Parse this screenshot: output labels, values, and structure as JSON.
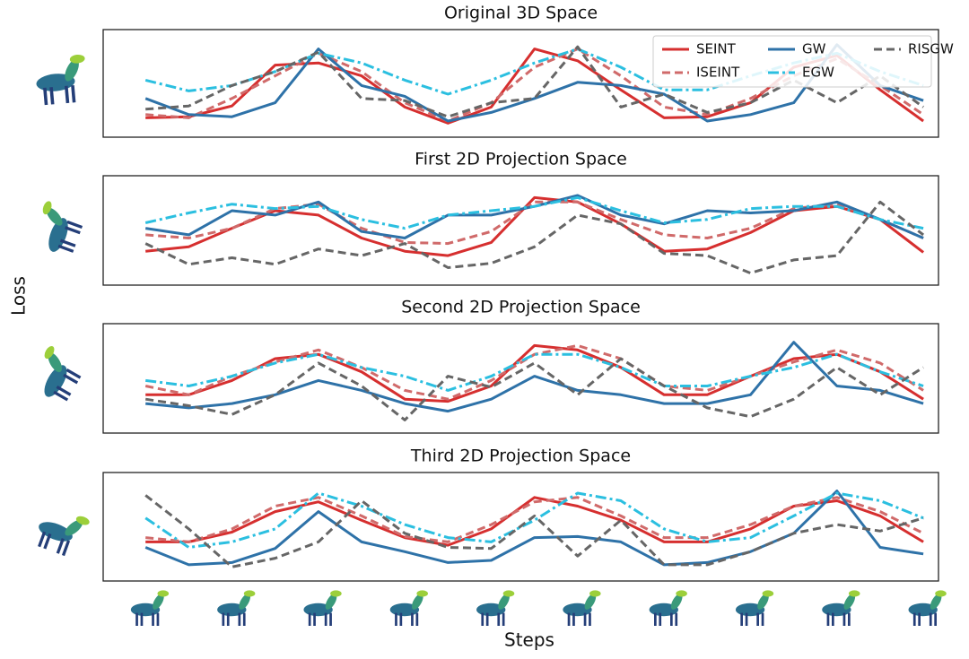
{
  "figure": {
    "ylabel": "Loss",
    "xlabel": "Steps"
  },
  "chart_data": [
    {
      "type": "line",
      "title": "Original 3D Space",
      "legend": "upper right",
      "xlim": [
        -0.98,
        18.35
      ],
      "ylim": [
        0,
        1
      ],
      "x": [
        0,
        1,
        2,
        3,
        4,
        5,
        6,
        7,
        8,
        9,
        10,
        11,
        12,
        13,
        14,
        15,
        16,
        17,
        18
      ],
      "series": [
        {
          "name": "SEINT",
          "color": "#d62f2f",
          "style": "solid",
          "values": [
            0.18,
            0.19,
            0.29,
            0.67,
            0.69,
            0.57,
            0.28,
            0.13,
            0.28,
            0.82,
            0.71,
            0.44,
            0.18,
            0.19,
            0.32,
            0.65,
            0.76,
            0.44,
            0.15
          ]
        },
        {
          "name": "ISEINT",
          "color": "#d06a6a",
          "style": "dashed",
          "values": [
            0.21,
            0.18,
            0.36,
            0.57,
            0.78,
            0.61,
            0.32,
            0.15,
            0.32,
            0.65,
            0.82,
            0.57,
            0.28,
            0.21,
            0.36,
            0.57,
            0.73,
            0.48,
            0.21
          ]
        },
        {
          "name": "GW",
          "color": "#2e72a8",
          "style": "solid",
          "values": [
            0.36,
            0.21,
            0.19,
            0.32,
            0.82,
            0.48,
            0.38,
            0.15,
            0.23,
            0.36,
            0.51,
            0.48,
            0.4,
            0.15,
            0.21,
            0.32,
            0.86,
            0.48,
            0.34
          ]
        },
        {
          "name": "EGW",
          "color": "#2bbfe0",
          "style": "dashdot",
          "values": [
            0.53,
            0.43,
            0.48,
            0.61,
            0.78,
            0.69,
            0.53,
            0.4,
            0.53,
            0.69,
            0.82,
            0.65,
            0.44,
            0.44,
            0.57,
            0.69,
            0.78,
            0.61,
            0.48
          ]
        },
        {
          "name": "RISGW",
          "color": "#666666",
          "style": "dashed",
          "values": [
            0.26,
            0.29,
            0.48,
            0.61,
            0.79,
            0.36,
            0.34,
            0.19,
            0.32,
            0.36,
            0.84,
            0.28,
            0.4,
            0.23,
            0.32,
            0.53,
            0.32,
            0.57,
            0.28
          ]
        }
      ]
    },
    {
      "type": "line",
      "title": "First 2D Projection Space",
      "xlim": [
        -0.98,
        18.35
      ],
      "ylim": [
        0,
        1
      ],
      "x": [
        0,
        1,
        2,
        3,
        4,
        5,
        6,
        7,
        8,
        9,
        10,
        11,
        12,
        13,
        14,
        15,
        16,
        17,
        18
      ],
      "series": [
        {
          "name": "SEINT",
          "color": "#d62f2f",
          "style": "solid",
          "values": [
            0.31,
            0.35,
            0.52,
            0.68,
            0.64,
            0.43,
            0.31,
            0.27,
            0.39,
            0.8,
            0.76,
            0.56,
            0.31,
            0.33,
            0.48,
            0.68,
            0.72,
            0.6,
            0.3
          ]
        },
        {
          "name": "ISEINT",
          "color": "#d06a6a",
          "style": "dashed",
          "values": [
            0.46,
            0.43,
            0.52,
            0.7,
            0.74,
            0.52,
            0.39,
            0.38,
            0.49,
            0.76,
            0.76,
            0.6,
            0.46,
            0.43,
            0.52,
            0.7,
            0.74,
            0.6,
            0.43
          ]
        },
        {
          "name": "GW",
          "color": "#2e72a8",
          "style": "solid",
          "values": [
            0.52,
            0.46,
            0.68,
            0.64,
            0.76,
            0.49,
            0.43,
            0.64,
            0.64,
            0.72,
            0.82,
            0.64,
            0.56,
            0.68,
            0.66,
            0.68,
            0.76,
            0.6,
            0.43
          ]
        },
        {
          "name": "EGW",
          "color": "#2bbfe0",
          "style": "dashdot",
          "values": [
            0.57,
            0.66,
            0.74,
            0.7,
            0.72,
            0.6,
            0.52,
            0.64,
            0.68,
            0.72,
            0.8,
            0.68,
            0.57,
            0.6,
            0.7,
            0.72,
            0.72,
            0.6,
            0.52
          ]
        },
        {
          "name": "RISGW",
          "color": "#666666",
          "style": "dashed",
          "values": [
            0.38,
            0.19,
            0.25,
            0.19,
            0.33,
            0.27,
            0.38,
            0.16,
            0.2,
            0.35,
            0.64,
            0.56,
            0.29,
            0.27,
            0.11,
            0.23,
            0.27,
            0.76,
            0.46
          ]
        }
      ]
    },
    {
      "type": "line",
      "title": "Second 2D Projection Space",
      "xlim": [
        -0.98,
        18.35
      ],
      "ylim": [
        0,
        1
      ],
      "x": [
        0,
        1,
        2,
        3,
        4,
        5,
        6,
        7,
        8,
        9,
        10,
        11,
        12,
        13,
        14,
        15,
        16,
        17,
        18
      ],
      "series": [
        {
          "name": "SEINT",
          "color": "#d62f2f",
          "style": "solid",
          "values": [
            0.35,
            0.35,
            0.48,
            0.68,
            0.72,
            0.56,
            0.31,
            0.29,
            0.43,
            0.8,
            0.76,
            0.6,
            0.35,
            0.35,
            0.52,
            0.68,
            0.72,
            0.56,
            0.31
          ]
        },
        {
          "name": "ISEINT",
          "color": "#d06a6a",
          "style": "dashed",
          "values": [
            0.43,
            0.35,
            0.52,
            0.65,
            0.76,
            0.6,
            0.39,
            0.31,
            0.48,
            0.72,
            0.8,
            0.68,
            0.43,
            0.39,
            0.52,
            0.65,
            0.76,
            0.64,
            0.39
          ]
        },
        {
          "name": "GW",
          "color": "#2e72a8",
          "style": "solid",
          "values": [
            0.27,
            0.23,
            0.27,
            0.35,
            0.48,
            0.39,
            0.27,
            0.2,
            0.31,
            0.52,
            0.39,
            0.35,
            0.27,
            0.27,
            0.35,
            0.83,
            0.43,
            0.39,
            0.27
          ]
        },
        {
          "name": "EGW",
          "color": "#2bbfe0",
          "style": "dashdot",
          "values": [
            0.48,
            0.43,
            0.52,
            0.64,
            0.72,
            0.6,
            0.52,
            0.39,
            0.52,
            0.72,
            0.72,
            0.6,
            0.43,
            0.43,
            0.52,
            0.6,
            0.72,
            0.56,
            0.43
          ]
        },
        {
          "name": "RISGW",
          "color": "#666666",
          "style": "dashed",
          "values": [
            0.31,
            0.25,
            0.17,
            0.35,
            0.64,
            0.43,
            0.12,
            0.52,
            0.42,
            0.64,
            0.35,
            0.68,
            0.43,
            0.23,
            0.15,
            0.31,
            0.6,
            0.35,
            0.6
          ]
        }
      ]
    },
    {
      "type": "line",
      "title": "Third 2D Projection Space",
      "xlim": [
        -0.98,
        18.35
      ],
      "ylim": [
        0,
        1
      ],
      "x": [
        0,
        1,
        2,
        3,
        4,
        5,
        6,
        7,
        8,
        9,
        10,
        11,
        12,
        13,
        14,
        15,
        16,
        17,
        18
      ],
      "series": [
        {
          "name": "SEINT",
          "color": "#d62f2f",
          "style": "solid",
          "values": [
            0.36,
            0.36,
            0.45,
            0.64,
            0.73,
            0.56,
            0.4,
            0.33,
            0.48,
            0.77,
            0.69,
            0.56,
            0.36,
            0.36,
            0.48,
            0.69,
            0.74,
            0.6,
            0.36
          ]
        },
        {
          "name": "ISEINT",
          "color": "#d06a6a",
          "style": "dashed",
          "values": [
            0.4,
            0.36,
            0.48,
            0.69,
            0.77,
            0.6,
            0.41,
            0.36,
            0.52,
            0.73,
            0.77,
            0.6,
            0.4,
            0.4,
            0.52,
            0.69,
            0.77,
            0.64,
            0.44
          ]
        },
        {
          "name": "GW",
          "color": "#2e72a8",
          "style": "solid",
          "values": [
            0.31,
            0.15,
            0.17,
            0.3,
            0.64,
            0.36,
            0.27,
            0.17,
            0.19,
            0.4,
            0.41,
            0.36,
            0.15,
            0.17,
            0.27,
            0.44,
            0.83,
            0.31,
            0.25
          ]
        },
        {
          "name": "EGW",
          "color": "#2bbfe0",
          "style": "dashdot",
          "values": [
            0.58,
            0.31,
            0.36,
            0.48,
            0.81,
            0.69,
            0.52,
            0.4,
            0.36,
            0.56,
            0.81,
            0.74,
            0.48,
            0.36,
            0.4,
            0.6,
            0.81,
            0.74,
            0.58
          ]
        },
        {
          "name": "RISGW",
          "color": "#666666",
          "style": "dashed",
          "values": [
            0.79,
            0.48,
            0.13,
            0.21,
            0.36,
            0.74,
            0.44,
            0.31,
            0.3,
            0.6,
            0.23,
            0.56,
            0.15,
            0.15,
            0.27,
            0.44,
            0.52,
            0.46,
            0.58
          ]
        }
      ]
    }
  ]
}
